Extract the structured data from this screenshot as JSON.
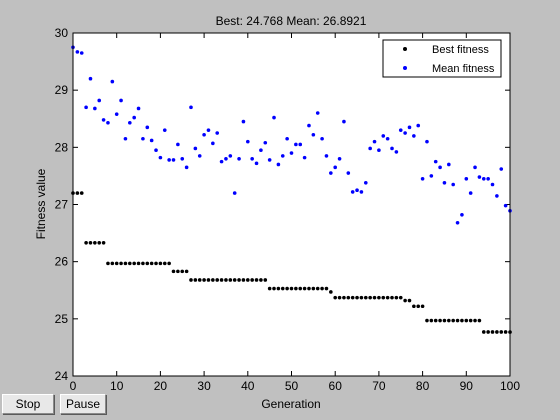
{
  "buttons": {
    "stop_label": "Stop",
    "pause_label": "Pause"
  },
  "colors": {
    "best": "#000000",
    "mean": "#0000ff",
    "figure_bg": "#c0c0c0",
    "axes_bg": "#ffffff"
  },
  "chart_data": {
    "type": "scatter",
    "title": "Best: 24.768 Mean: 26.8921",
    "xlabel": "Generation",
    "ylabel": "Fitness value",
    "xlim": [
      0,
      100
    ],
    "ylim": [
      24,
      30
    ],
    "xticks": [
      0,
      10,
      20,
      30,
      40,
      50,
      60,
      70,
      80,
      90,
      100
    ],
    "yticks": [
      24,
      25,
      26,
      27,
      28,
      29,
      30
    ],
    "grid": false,
    "legend_position": "top-right",
    "series": [
      {
        "name": "Best fitness",
        "x": [
          0,
          1,
          2,
          3,
          4,
          5,
          6,
          7,
          8,
          9,
          10,
          11,
          12,
          13,
          14,
          15,
          16,
          17,
          18,
          19,
          20,
          21,
          22,
          23,
          24,
          25,
          26,
          27,
          28,
          29,
          30,
          31,
          32,
          33,
          34,
          35,
          36,
          37,
          38,
          39,
          40,
          41,
          42,
          43,
          44,
          45,
          46,
          47,
          48,
          49,
          50,
          51,
          52,
          53,
          54,
          55,
          56,
          57,
          58,
          59,
          60,
          61,
          62,
          63,
          64,
          65,
          66,
          67,
          68,
          69,
          70,
          71,
          72,
          73,
          74,
          75,
          76,
          77,
          78,
          79,
          80,
          81,
          82,
          83,
          84,
          85,
          86,
          87,
          88,
          89,
          90,
          91,
          92,
          93,
          94,
          95,
          96,
          97,
          98,
          99,
          100
        ],
        "y": [
          27.2,
          27.2,
          27.2,
          26.33,
          26.33,
          26.33,
          26.33,
          26.33,
          25.97,
          25.97,
          25.97,
          25.97,
          25.97,
          25.97,
          25.97,
          25.97,
          25.97,
          25.97,
          25.97,
          25.97,
          25.97,
          25.97,
          25.97,
          25.83,
          25.83,
          25.83,
          25.83,
          25.68,
          25.68,
          25.68,
          25.68,
          25.68,
          25.68,
          25.68,
          25.68,
          25.68,
          25.68,
          25.68,
          25.68,
          25.68,
          25.68,
          25.68,
          25.68,
          25.68,
          25.68,
          25.53,
          25.53,
          25.53,
          25.53,
          25.53,
          25.53,
          25.53,
          25.53,
          25.53,
          25.53,
          25.53,
          25.53,
          25.53,
          25.53,
          25.47,
          25.37,
          25.37,
          25.37,
          25.37,
          25.37,
          25.37,
          25.37,
          25.37,
          25.37,
          25.37,
          25.37,
          25.37,
          25.37,
          25.37,
          25.37,
          25.37,
          25.32,
          25.32,
          25.22,
          25.22,
          25.22,
          24.97,
          24.97,
          24.97,
          24.97,
          24.97,
          24.97,
          24.97,
          24.97,
          24.97,
          24.97,
          24.97,
          24.97,
          24.97,
          24.77,
          24.77,
          24.77,
          24.77,
          24.77,
          24.77,
          24.768
        ]
      },
      {
        "name": "Mean fitness",
        "x": [
          0,
          1,
          2,
          3,
          4,
          5,
          6,
          7,
          8,
          9,
          10,
          11,
          12,
          13,
          14,
          15,
          16,
          17,
          18,
          19,
          20,
          21,
          22,
          23,
          24,
          25,
          26,
          27,
          28,
          29,
          30,
          31,
          32,
          33,
          34,
          35,
          36,
          37,
          38,
          39,
          40,
          41,
          42,
          43,
          44,
          45,
          46,
          47,
          48,
          49,
          50,
          51,
          52,
          53,
          54,
          55,
          56,
          57,
          58,
          59,
          60,
          61,
          62,
          63,
          64,
          65,
          66,
          67,
          68,
          69,
          70,
          71,
          72,
          73,
          74,
          75,
          76,
          77,
          78,
          79,
          80,
          81,
          82,
          83,
          84,
          85,
          86,
          87,
          88,
          89,
          90,
          91,
          92,
          93,
          94,
          95,
          96,
          97,
          98,
          99,
          100
        ],
        "y": [
          29.75,
          29.67,
          29.65,
          28.7,
          29.2,
          28.68,
          28.82,
          28.48,
          28.43,
          29.15,
          28.58,
          28.82,
          28.15,
          28.43,
          28.52,
          28.68,
          28.15,
          28.35,
          28.12,
          27.95,
          27.82,
          28.3,
          27.78,
          27.78,
          28.05,
          27.8,
          27.65,
          28.7,
          27.98,
          27.85,
          28.22,
          28.3,
          28.07,
          28.25,
          27.75,
          27.8,
          27.85,
          27.2,
          27.8,
          28.45,
          28.1,
          27.8,
          27.72,
          27.95,
          28.08,
          27.78,
          28.52,
          27.7,
          27.85,
          28.15,
          27.9,
          28.05,
          28.05,
          27.82,
          28.38,
          28.22,
          28.6,
          28.15,
          27.85,
          27.55,
          27.65,
          27.8,
          28.45,
          27.55,
          27.22,
          27.25,
          27.22,
          27.38,
          27.98,
          28.1,
          27.95,
          28.2,
          28.15,
          27.98,
          27.92,
          28.3,
          28.25,
          28.35,
          28.2,
          28.38,
          27.45,
          28.1,
          27.5,
          27.75,
          27.65,
          27.38,
          27.7,
          27.35,
          26.68,
          26.82,
          27.45,
          27.2,
          27.65,
          27.48,
          27.45,
          27.45,
          27.35,
          27.15,
          27.62,
          26.98,
          26.89
        ]
      }
    ]
  }
}
